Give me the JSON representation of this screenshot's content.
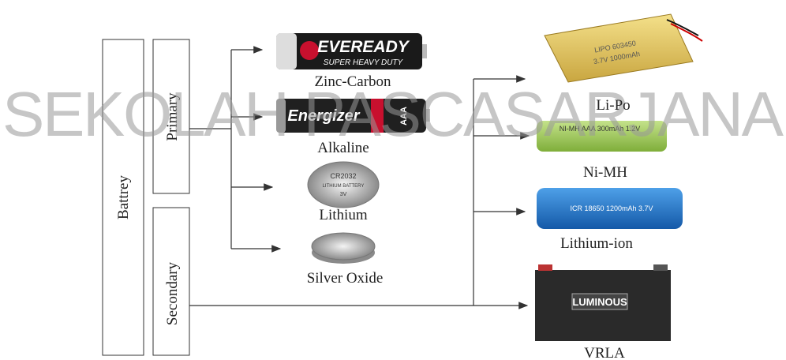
{
  "watermark": "SEKOLAH PASCASARJANA",
  "root": {
    "label": "Battrey"
  },
  "groups": [
    {
      "label": "Primary"
    },
    {
      "label": "Secondary"
    }
  ],
  "nodes": [
    {
      "label": "Zinc-Carbon",
      "printed": [
        "EVEREADY",
        "SUPER HEAVY DUTY"
      ]
    },
    {
      "label": "Alkaline",
      "printed": [
        "Energizer",
        "AAA"
      ]
    },
    {
      "label": "Lithium",
      "printed": [
        "CR2032",
        "LITHIUM BATTERY",
        "3V"
      ]
    },
    {
      "label": "Silver Oxide",
      "printed": []
    },
    {
      "label": "Li-Po",
      "printed": [
        "LIPO 603450",
        "3.7V 1000mAh"
      ]
    },
    {
      "label": "Ni-MH",
      "printed": [
        "NI-MH AAA 300mAh 1.2V"
      ]
    },
    {
      "label": "Lithium-ion",
      "printed": [
        "ICR 18650 1200mAh 3.7V"
      ]
    },
    {
      "label": "VRLA",
      "printed": [
        "LUMINOUS"
      ]
    }
  ]
}
